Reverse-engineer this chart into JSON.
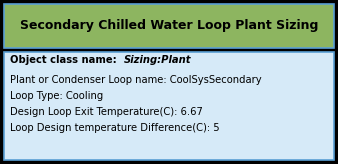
{
  "title": "Secondary Chilled Water Loop Plant Sizing",
  "title_bg": "#8db560",
  "title_color": "#000000",
  "body_bg": "#d6eaf8",
  "outer_bg": "#000000",
  "border_color": "#5a9fd4",
  "line1_bold": "Object class name:  ",
  "line1_italic": "Sizing:Plant",
  "line2": "Plant or Condenser Loop name: CoolSysSecondary",
  "line3": "Loop Type: Cooling",
  "line4": "Design Loop Exit Temperature(C): 6.67",
  "line5": "Loop Design temperature Difference(C): 5",
  "font_size": 7.2,
  "title_font_size": 9.0,
  "fig_width": 3.38,
  "fig_height": 1.64,
  "dpi": 100
}
